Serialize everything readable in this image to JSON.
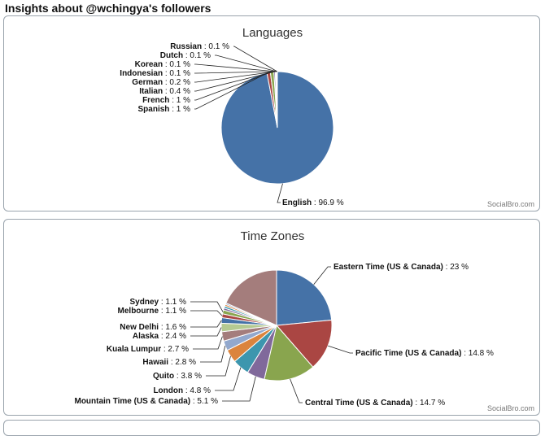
{
  "page": {
    "title": "Insights about @wchingya's followers"
  },
  "chart_data": [
    {
      "type": "pie",
      "title": "Languages",
      "credit": "SocialBro.com",
      "slices": [
        {
          "name": "English",
          "value": 96.9,
          "value_label": "96.9 %",
          "color": "#4572a7"
        },
        {
          "name": "Spanish",
          "value": 1,
          "value_label": "1 %",
          "color": "#aa4643"
        },
        {
          "name": "French",
          "value": 1,
          "value_label": "1 %",
          "color": "#89a54e"
        },
        {
          "name": "Italian",
          "value": 0.4,
          "value_label": "0.4 %",
          "color": "#80699b"
        },
        {
          "name": "German",
          "value": 0.2,
          "value_label": "0.2 %",
          "color": "#3d96ae"
        },
        {
          "name": "Indonesian",
          "value": 0.1,
          "value_label": "0.1 %",
          "color": "#db843d"
        },
        {
          "name": "Korean",
          "value": 0.1,
          "value_label": "0.1 %",
          "color": "#92a8cd"
        },
        {
          "name": "Dutch",
          "value": 0.1,
          "value_label": "0.1 %",
          "color": "#a47d7c"
        },
        {
          "name": "Russian",
          "value": 0.1,
          "value_label": "0.1 %",
          "color": "#b5ca92"
        }
      ]
    },
    {
      "type": "pie",
      "title": "Time Zones",
      "credit": "SocialBro.com",
      "slices": [
        {
          "name": "Eastern Time (US & Canada)",
          "value": 23,
          "value_label": "23 %",
          "color": "#4572a7"
        },
        {
          "name": "Pacific Time (US & Canada)",
          "value": 14.8,
          "value_label": "14.8 %",
          "color": "#aa4643"
        },
        {
          "name": "Central Time (US & Canada)",
          "value": 14.7,
          "value_label": "14.7 %",
          "color": "#89a54e"
        },
        {
          "name": "Mountain Time (US & Canada)",
          "value": 5.1,
          "value_label": "5.1 %",
          "color": "#80699b"
        },
        {
          "name": "London",
          "value": 4.8,
          "value_label": "4.8 %",
          "color": "#3d96ae"
        },
        {
          "name": "Quito",
          "value": 3.8,
          "value_label": "3.8 %",
          "color": "#db843d"
        },
        {
          "name": "Hawaii",
          "value": 2.8,
          "value_label": "2.8 %",
          "color": "#92a8cd"
        },
        {
          "name": "Kuala Lumpur",
          "value": 2.7,
          "value_label": "2.7 %",
          "color": "#a47d7c"
        },
        {
          "name": "Alaska",
          "value": 2.4,
          "value_label": "2.4 %",
          "color": "#b5ca92"
        },
        {
          "name": "New Delhi",
          "value": 1.6,
          "value_label": "1.6 %",
          "color": "#4572a7"
        },
        {
          "name": "Melbourne",
          "value": 1.1,
          "value_label": "1.1 %",
          "color": "#aa4643"
        },
        {
          "name": "Sydney",
          "value": 1.1,
          "value_label": "1.1 %",
          "color": "#89a54e"
        },
        {
          "name": "",
          "value": 0.6,
          "value_label": "",
          "color": "#80699b"
        },
        {
          "name": "",
          "value": 0.6,
          "value_label": "",
          "color": "#3d96ae"
        },
        {
          "name": "",
          "value": 0.5,
          "value_label": "",
          "color": "#db843d"
        },
        {
          "name": "",
          "value": 0.4,
          "value_label": "",
          "color": "#92a8cd"
        },
        {
          "name": "",
          "value": 18.0,
          "value_label": "",
          "color": "#a47d7c"
        }
      ]
    }
  ]
}
